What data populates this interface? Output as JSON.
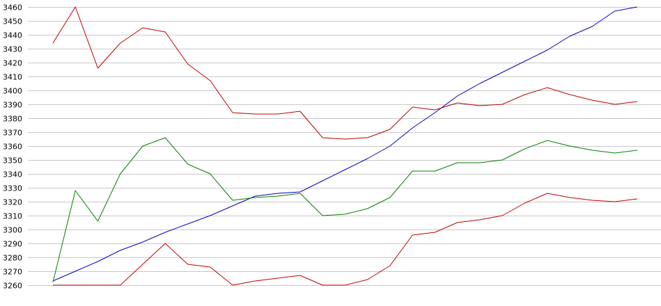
{
  "chart_data": {
    "type": "line",
    "title": "",
    "xlabel": "",
    "ylabel": "",
    "ylim": [
      3260,
      3460
    ],
    "yticks": [
      3260,
      3270,
      3280,
      3290,
      3300,
      3310,
      3320,
      3330,
      3340,
      3350,
      3360,
      3370,
      3380,
      3390,
      3400,
      3410,
      3420,
      3430,
      3440,
      3450,
      3460
    ],
    "grid": "horizontal",
    "legend": "none",
    "x": [
      1,
      2,
      3,
      4,
      5,
      6,
      7,
      8,
      9,
      10,
      11,
      12,
      13,
      14,
      15,
      16,
      17,
      18,
      19,
      20,
      21,
      22,
      23,
      24,
      25,
      26,
      27,
      28
    ],
    "series": [
      {
        "color": "#0000c0",
        "values": [
          3263,
          3270,
          3277,
          3285,
          3291,
          3298,
          3304,
          3310,
          3317,
          3324,
          3326,
          3327,
          3335,
          3343,
          3351,
          3360,
          3373,
          3384,
          3396,
          3405,
          3413,
          3421,
          3429,
          3439,
          3446,
          3457,
          3460,
          null
        ]
      },
      {
        "color": "#c00000",
        "values": [
          3434,
          3460,
          3416,
          3434,
          3445,
          3442,
          3419,
          3407,
          3384,
          3383,
          3383,
          3385,
          3366,
          3365,
          3366,
          3372,
          3388,
          3386,
          3391,
          3389,
          3390,
          3397,
          3402,
          3397,
          3393,
          3390,
          3392,
          null
        ]
      },
      {
        "color": "#008000",
        "values": [
          3262,
          3328,
          3306,
          3340,
          3360,
          3366,
          3347,
          3340,
          3321,
          3323,
          3324,
          3326,
          3310,
          3311,
          3315,
          3323,
          3342,
          3342,
          3348,
          3348,
          3350,
          3358,
          3364,
          3360,
          3357,
          3355,
          3357,
          null
        ]
      },
      {
        "color": "#c00000",
        "values": [
          3260,
          3260,
          3260,
          3260,
          3275,
          3290,
          3275,
          3273,
          3260,
          3263,
          3265,
          3267,
          3260,
          3260,
          3264,
          3274,
          3296,
          3298,
          3305,
          3307,
          3310,
          3319,
          3326,
          3323,
          3321,
          3320,
          3322,
          null
        ]
      }
    ]
  }
}
